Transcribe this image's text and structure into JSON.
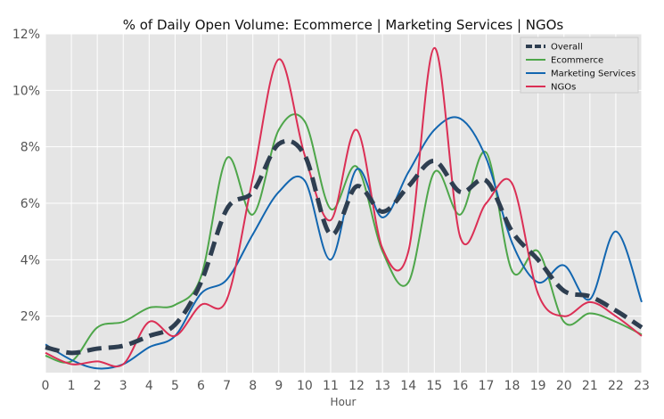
{
  "chart_data": {
    "type": "line",
    "title": "% of Daily Open Volume: Ecommerce | Marketing Services | NGOs",
    "xlabel": "Hour",
    "ylabel": "",
    "x": [
      0,
      1,
      2,
      3,
      4,
      5,
      6,
      7,
      8,
      9,
      10,
      11,
      12,
      13,
      14,
      15,
      16,
      17,
      18,
      19,
      20,
      21,
      22,
      23
    ],
    "xlim": [
      0,
      23
    ],
    "ylim": [
      0,
      12
    ],
    "yticks": [
      2,
      4,
      6,
      8,
      10,
      12
    ],
    "ytick_labels": [
      "2%",
      "4%",
      "6%",
      "8%",
      "10%",
      "12%"
    ],
    "grid": true,
    "legend_position": "top-right",
    "series": [
      {
        "name": "Overall",
        "color": "#2e3e50",
        "style": "dashed",
        "values": [
          0.9,
          0.7,
          0.85,
          0.95,
          1.3,
          1.7,
          3.2,
          5.8,
          6.4,
          8.1,
          7.7,
          4.9,
          6.6,
          5.7,
          6.6,
          7.5,
          6.4,
          6.8,
          5.0,
          4.0,
          2.9,
          2.7,
          2.2,
          1.6
        ]
      },
      {
        "name": "Ecommerce",
        "color": "#4ea64a",
        "style": "solid",
        "values": [
          0.6,
          0.4,
          1.6,
          1.8,
          2.3,
          2.4,
          3.4,
          7.6,
          5.6,
          8.6,
          8.9,
          5.8,
          7.3,
          4.3,
          3.2,
          7.1,
          5.6,
          7.8,
          3.6,
          4.3,
          1.8,
          2.1,
          1.8,
          1.35
        ]
      },
      {
        "name": "Marketing Services",
        "color": "#1266b0",
        "style": "solid",
        "values": [
          1.0,
          0.45,
          0.15,
          0.3,
          0.9,
          1.3,
          2.8,
          3.3,
          4.9,
          6.4,
          6.8,
          4.0,
          7.2,
          5.5,
          7.1,
          8.6,
          9.0,
          7.6,
          4.6,
          3.2,
          3.8,
          2.6,
          5.0,
          2.5
        ]
      },
      {
        "name": "NGOs",
        "color": "#db2f55",
        "style": "solid",
        "values": [
          0.7,
          0.3,
          0.4,
          0.3,
          1.8,
          1.3,
          2.4,
          2.6,
          6.9,
          11.1,
          7.7,
          5.4,
          8.6,
          4.4,
          4.3,
          11.5,
          4.8,
          6.0,
          6.7,
          2.8,
          2.0,
          2.5,
          2.0,
          1.3
        ]
      }
    ]
  }
}
